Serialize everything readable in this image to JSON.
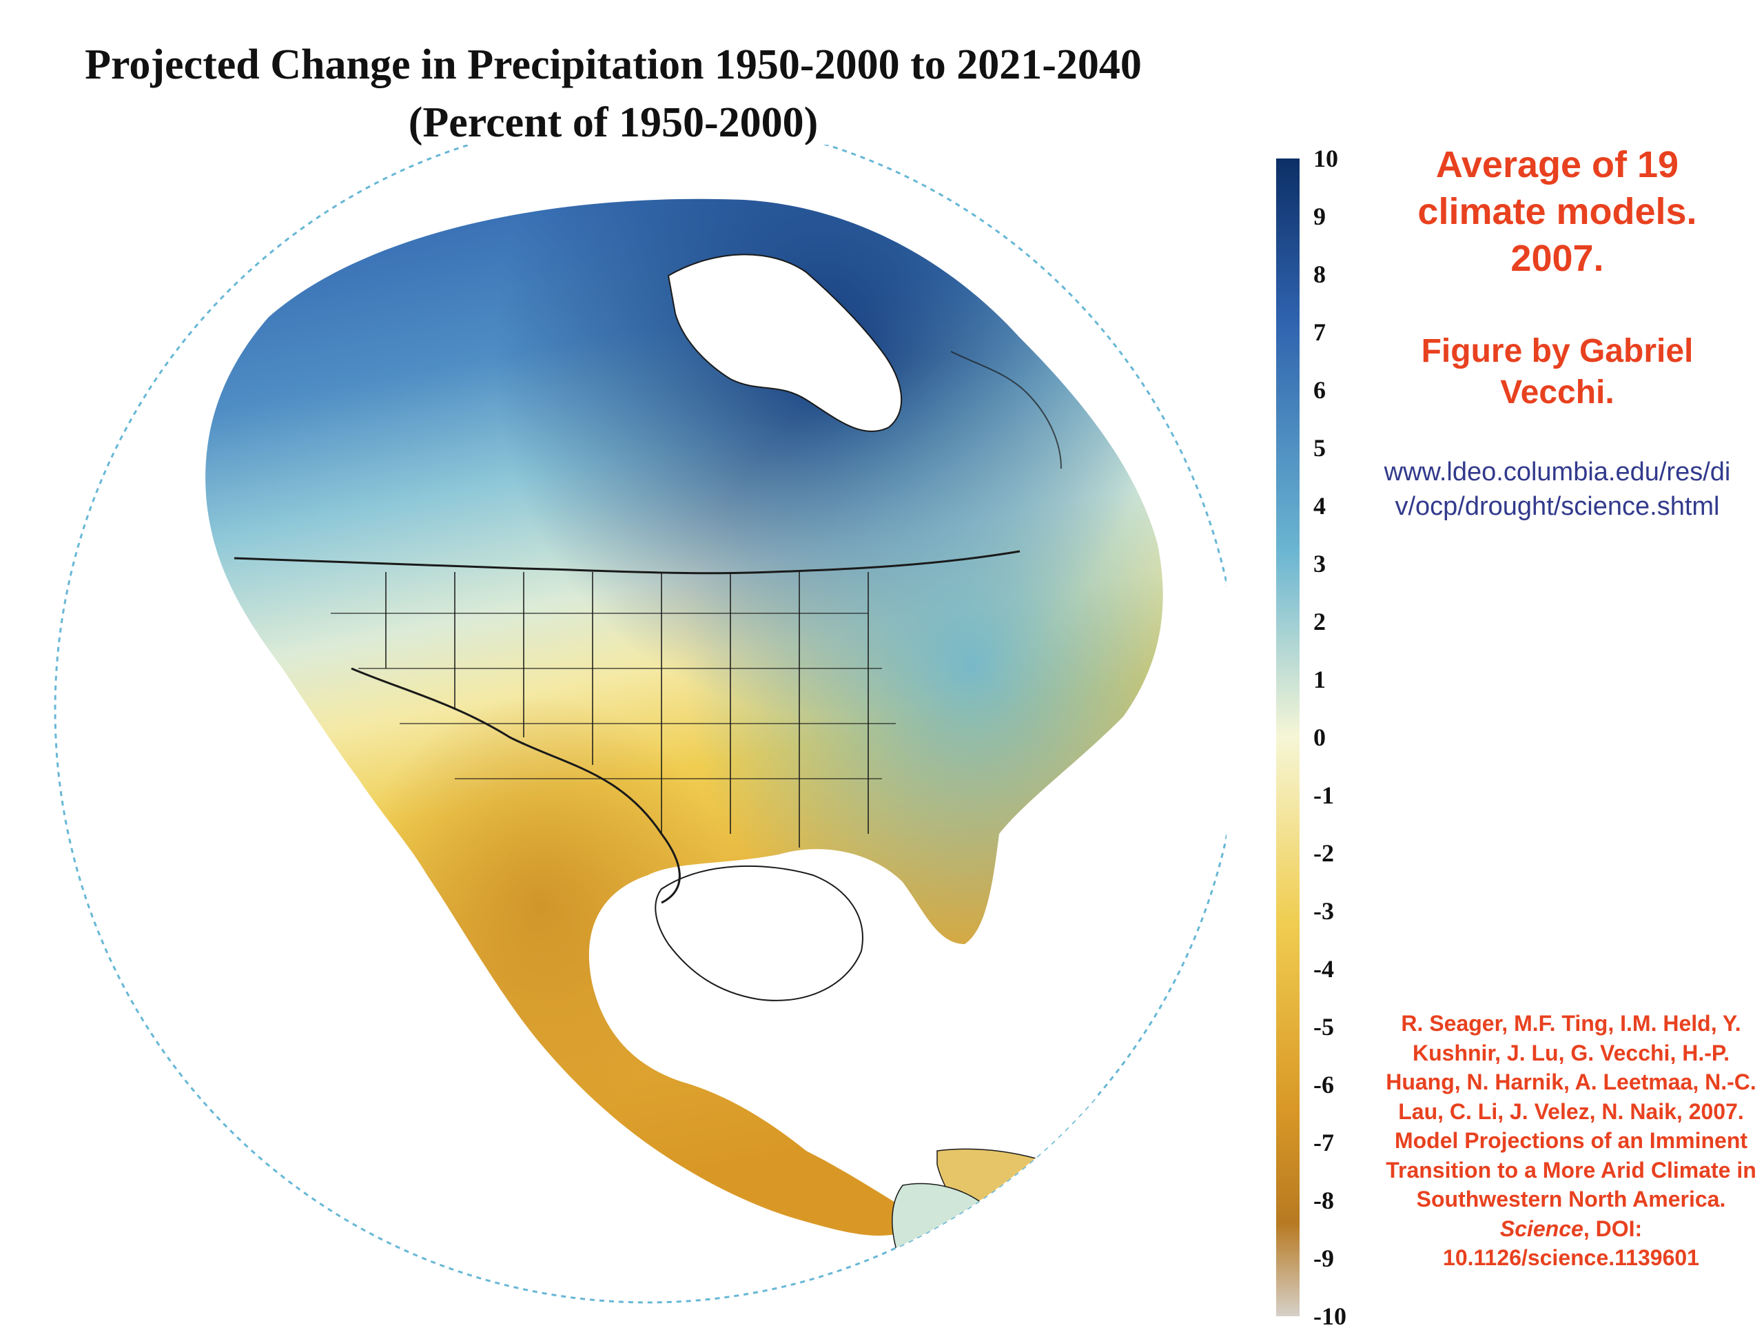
{
  "title": {
    "line1": "Projected Change in Precipitation 1950-2000 to 2021-2040",
    "line2": "(Percent of 1950-2000)"
  },
  "colorbar": {
    "labels": [
      "10",
      "9",
      "8",
      "7",
      "6",
      "5",
      "4",
      "3",
      "2",
      "1",
      "0",
      "-1",
      "-2",
      "-3",
      "-4",
      "-5",
      "-6",
      "-7",
      "-8",
      "-9",
      "-10"
    ],
    "min": -10,
    "max": 10,
    "colors": {
      "max": "#0d2f66",
      "high": "#2f63ae",
      "mid_high": "#6bb6d2",
      "zero": "#f6f6d6",
      "mid_low": "#f0cd50",
      "low": "#d99826",
      "min_dark": "#b77a22",
      "min": "#d6d0c8"
    }
  },
  "notes": {
    "source_main": "Average of 19 climate models. 2007.",
    "credit": "Figure by Gabriel Vecchi.",
    "url": "www.ldeo.columbia.edu/res/div/ocp/drought/science.shtml",
    "citation_before": "R. Seager, M.F. Ting, I.M. Held, Y. Kushnir, J. Lu, G. Vecchi, H.-P. Huang, N. Harnik, A. Leetmaa, N.-C. Lau, C. Li, J. Velez, N. Naik, 2007. Model Projections of an Imminent Transition to a More Arid Climate in Southwestern North America. ",
    "citation_journal": "Science",
    "citation_after": ", DOI: 10.1126/science.1139601"
  },
  "map": {
    "region": "North America",
    "ocean_color": "#ffffff",
    "border_color": "#1a1a1a"
  }
}
